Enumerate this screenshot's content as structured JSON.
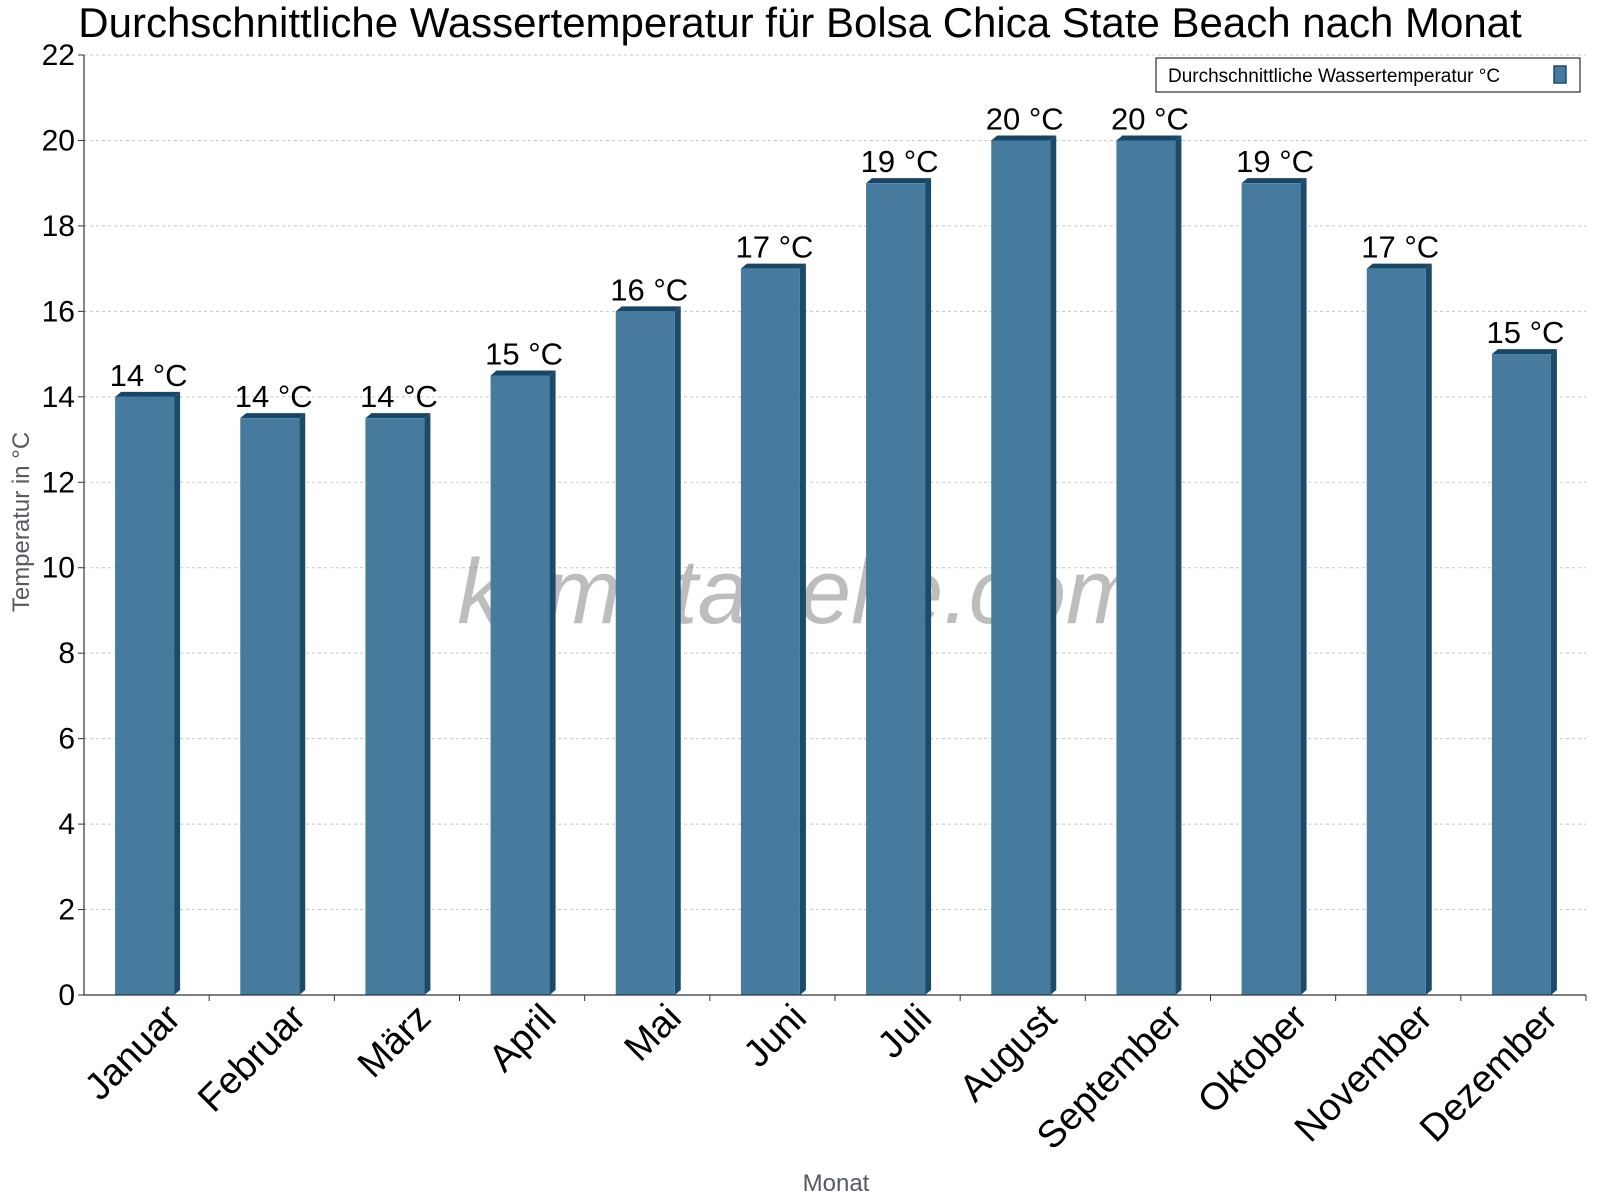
{
  "chart_data": {
    "type": "bar",
    "title": "Durchschnittliche Wassertemperatur für Bolsa Chica State Beach nach Monat",
    "xlabel": "Monat",
    "ylabel": "Temperatur in °C",
    "categories": [
      "Januar",
      "Februar",
      "März",
      "April",
      "Mai",
      "Juni",
      "Juli",
      "August",
      "September",
      "Oktober",
      "November",
      "Dezember"
    ],
    "series": [
      {
        "name": "Durchschnittliche Wassertemperatur °C",
        "values": [
          14,
          13.5,
          13.5,
          14.5,
          16,
          17,
          19,
          20,
          20,
          19,
          17,
          15
        ],
        "labels": [
          "14 °C",
          "14 °C",
          "14 °C",
          "15 °C",
          "16 °C",
          "17 °C",
          "19 °C",
          "20 °C",
          "20 °C",
          "19 °C",
          "17 °C",
          "15 °C"
        ]
      }
    ],
    "ylim": [
      0,
      22
    ],
    "yticks": [
      0,
      2,
      4,
      6,
      8,
      10,
      12,
      14,
      16,
      18,
      20,
      22
    ],
    "grid": true,
    "legend_position": "top-right",
    "watermark": "klimatabelle.com",
    "colors": {
      "bar_face": "#467b9e",
      "bar_side": "#1c4a6a",
      "bar_top": "#15476a",
      "grid": "#c8c8c8",
      "axis": "#333333",
      "axis_title": "#555a60"
    }
  }
}
